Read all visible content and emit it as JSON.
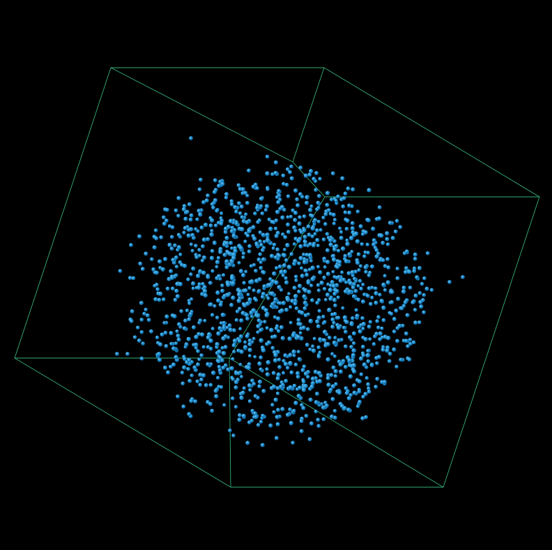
{
  "scene": {
    "background_color": "#000000",
    "bounding_box_color": "#3ecf8e",
    "particle_color": "#1e8fd0",
    "particle_highlight_color": "#5fb8ec",
    "particle_shape": "sphere",
    "particle_cloud_shape": "spherical-cluster",
    "approximate_particle_count": 1500,
    "projection": "perspective"
  }
}
